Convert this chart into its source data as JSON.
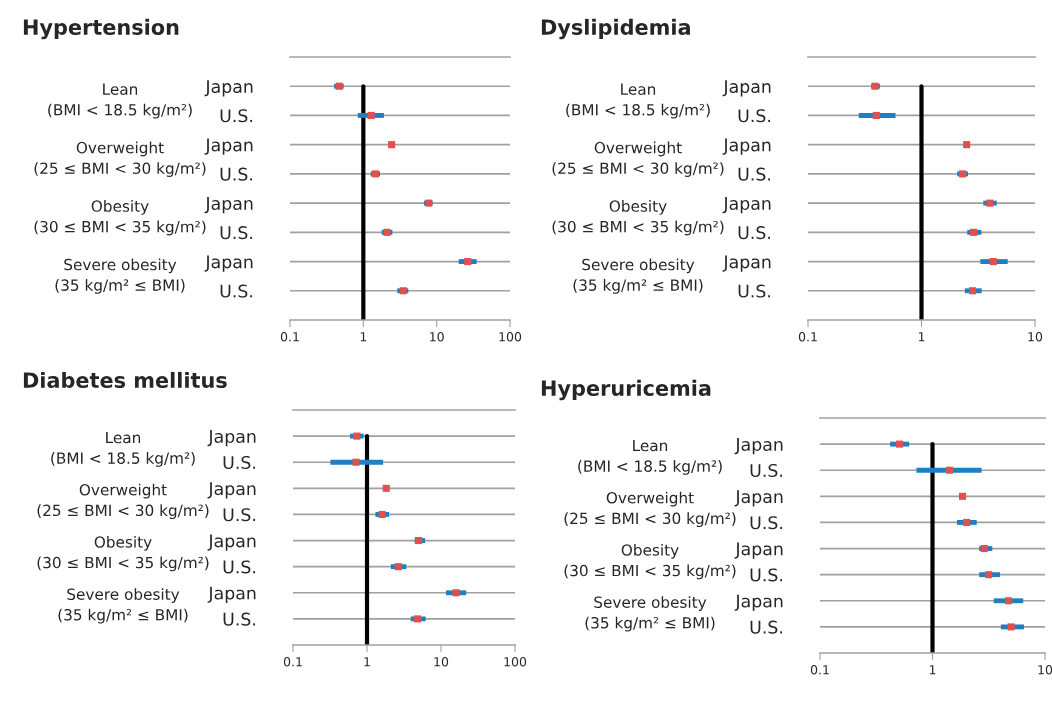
{
  "chart_data": [
    {
      "type": "scatter",
      "orientation": "horizontal",
      "title": "Hypertension",
      "log": "x",
      "grid": "y",
      "marker": "square",
      "categories": [
        "Japan",
        "U.S.",
        "Japan",
        "U.S.",
        "Japan",
        "U.S.",
        "Japan",
        "U.S."
      ],
      "color": "#e05050",
      "values": [
        0.47,
        1.28,
        2.43,
        1.46,
        7.8,
        2.1,
        26.5,
        3.5
      ],
      "errors": [
        [
          0.4,
          0.54
        ],
        [
          0.84,
          1.91
        ],
        null,
        [
          1.26,
          1.69
        ],
        [
          6.7,
          8.8
        ],
        [
          1.78,
          2.49
        ],
        [
          20,
          35
        ],
        [
          2.9,
          4.1
        ]
      ],
      "xlim": [
        0.1,
        100
      ],
      "xticks": [
        0.1,
        1,
        10,
        100
      ],
      "ref_lines": [
        {
          "axis": "x",
          "value": 1,
          "color": "#000000"
        }
      ],
      "annotations": [
        "Lean\n(BMI < 18.5 kg/m²)",
        "Overweight\n(25 ≤ BMI < 30 kg/m²)",
        "Obesity\n(30 ≤ BMI < 35 kg/m²)",
        "Severe obesity\n(35 kg/m² ≤ BMI)"
      ]
    },
    {
      "type": "scatter",
      "orientation": "horizontal",
      "title": "Dyslipidemia",
      "log": "x",
      "grid": "y",
      "marker": "square",
      "categories": [
        "Japan",
        "U.S.",
        "Japan",
        "U.S.",
        "Japan",
        "U.S.",
        "Japan",
        "U.S."
      ],
      "color": "#e05050",
      "values": [
        0.39,
        0.4,
        2.5,
        2.3,
        4.0,
        2.88,
        4.29,
        2.82
      ],
      "errors": [
        [
          0.36,
          0.43
        ],
        [
          0.28,
          0.59
        ],
        null,
        [
          2.06,
          2.57
        ],
        [
          3.5,
          4.6
        ],
        [
          2.53,
          3.37
        ],
        [
          3.3,
          5.75
        ],
        [
          2.41,
          3.39
        ]
      ],
      "xlim": [
        0.1,
        10
      ],
      "xticks": [
        0.1,
        1,
        10
      ],
      "ref_lines": [
        {
          "axis": "x",
          "value": 1,
          "color": "#000000"
        }
      ],
      "annotations": [
        "Lean\n(BMI < 18.5 kg/m²)",
        "Overweight\n(25 ≤ BMI < 30 kg/m²)",
        "Obesity\n(30 ≤ BMI < 35 kg/m²)",
        "Severe obesity\n(35 kg/m² ≤ BMI)"
      ]
    },
    {
      "type": "scatter",
      "orientation": "horizontal",
      "title": "Diabetes mellitus",
      "log": "x",
      "grid": "y",
      "marker": "square",
      "categories": [
        "Japan",
        "U.S.",
        "Japan",
        "U.S.",
        "Japan",
        "U.S.",
        "Japan",
        "U.S."
      ],
      "color": "#e05050",
      "values": [
        0.73,
        0.71,
        1.82,
        1.6,
        4.96,
        2.65,
        16,
        4.8
      ],
      "errors": [
        [
          0.59,
          0.9
        ],
        [
          0.32,
          1.65
        ],
        null,
        [
          1.3,
          1.99
        ],
        [
          4.4,
          6.1
        ],
        [
          2.1,
          3.4
        ],
        [
          11.7,
          21.9
        ],
        [
          3.9,
          6.2
        ]
      ],
      "xlim": [
        0.1,
        100
      ],
      "xticks": [
        0.1,
        1,
        10,
        100
      ],
      "ref_lines": [
        {
          "axis": "x",
          "value": 1,
          "color": "#000000"
        }
      ],
      "annotations": [
        "Lean\n(BMI < 18.5 kg/m²)",
        "Overweight\n(25 ≤ BMI < 30 kg/m²)",
        "Obesity\n(30 ≤ BMI < 35 kg/m²)",
        "Severe obesity\n(35 kg/m² ≤ BMI)"
      ]
    },
    {
      "type": "scatter",
      "orientation": "horizontal",
      "title": "Hyperuricemia",
      "log": "x",
      "grid": "y",
      "marker": "square",
      "categories": [
        "Japan",
        "U.S.",
        "Japan",
        "U.S.",
        "Japan",
        "U.S.",
        "Japan",
        "U.S."
      ],
      "color": "#e05050",
      "values": [
        0.51,
        1.42,
        1.85,
        2.01,
        2.88,
        3.16,
        4.73,
        5.0
      ],
      "errors": [
        [
          0.42,
          0.62
        ],
        [
          0.72,
          2.73
        ],
        null,
        [
          1.65,
          2.47
        ],
        [
          2.6,
          3.4
        ],
        [
          2.6,
          3.98
        ],
        [
          3.5,
          6.4
        ],
        [
          4.05,
          6.5
        ]
      ],
      "xlim": [
        0.1,
        10
      ],
      "xticks": [
        0.1,
        1,
        10
      ],
      "ref_lines": [
        {
          "axis": "x",
          "value": 1,
          "color": "#000000"
        }
      ],
      "annotations": [
        "Lean\n(BMI < 18.5 kg/m²)",
        "Overweight\n(25 ≤ BMI < 30 kg/m²)",
        "Obesity\n(30 ≤ BMI < 35 kg/m²)",
        "Severe obesity\n(35 kg/m² ≤ BMI)"
      ]
    }
  ]
}
